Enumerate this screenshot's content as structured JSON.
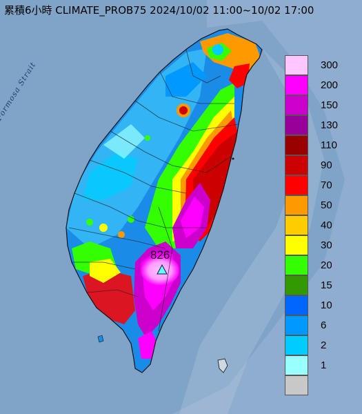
{
  "title": "累積6小時 CLIMATE_PROB75 2024/10/02 11:00~10/02 17:00",
  "map_labels": {
    "strait": "Formosa Strait"
  },
  "max_value": "826",
  "legend": [
    {
      "label": "300",
      "color": "#ffc6ff"
    },
    {
      "label": "200",
      "color": "#ff00ff"
    },
    {
      "label": "150",
      "color": "#cc00cc"
    },
    {
      "label": "130",
      "color": "#990099"
    },
    {
      "label": "110",
      "color": "#990000"
    },
    {
      "label": "90",
      "color": "#cc0000"
    },
    {
      "label": "70",
      "color": "#ff0000"
    },
    {
      "label": "50",
      "color": "#ff9900"
    },
    {
      "label": "40",
      "color": "#ffcc00"
    },
    {
      "label": "30",
      "color": "#ffff00"
    },
    {
      "label": "20",
      "color": "#33ff00"
    },
    {
      "label": "15",
      "color": "#339900"
    },
    {
      "label": "10",
      "color": "#0066ff"
    },
    {
      "label": "6",
      "color": "#0099ff"
    },
    {
      "label": "2",
      "color": "#00ccff"
    },
    {
      "label": "1",
      "color": "#99ffff"
    },
    {
      "label": "",
      "color": "#c8c8c8"
    }
  ],
  "palette": {
    "sea": "#7fa4c8",
    "land_bg": "#1a8ce8"
  }
}
